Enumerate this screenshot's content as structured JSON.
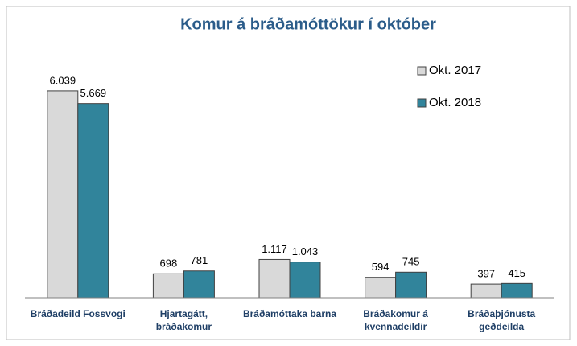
{
  "chart_data": {
    "type": "bar",
    "title": "Komur á bráðamóttökur í október",
    "categories": [
      "Bráðadeild Fossvogi",
      "Hjartagátt,\nbráðakomur",
      "Bráðamóttaka barna",
      "Bráðakomur á\nkvennadeildir",
      "Bráðaþjónusta\ngeðdeilda"
    ],
    "series": [
      {
        "name": "Okt. 2017",
        "color": "#d9d9d9",
        "values": [
          6039,
          698,
          1117,
          594,
          397
        ],
        "value_labels": [
          "6.039",
          "698",
          "1.117",
          "594",
          "397"
        ]
      },
      {
        "name": "Okt. 2018",
        "color": "#31849b",
        "values": [
          5669,
          781,
          1043,
          745,
          415
        ],
        "value_labels": [
          "5.669",
          "781",
          "1.043",
          "745",
          "415"
        ]
      }
    ],
    "ylim": [
      0,
      7000
    ],
    "legend": "upper right"
  }
}
